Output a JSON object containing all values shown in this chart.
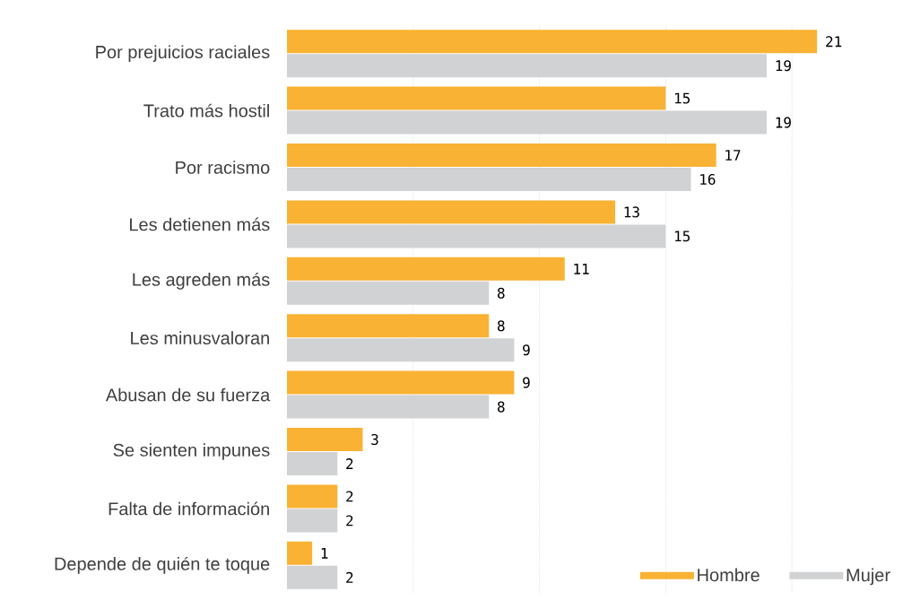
{
  "chart_data": {
    "type": "bar",
    "orientation": "horizontal",
    "categories": [
      "Por prejuicios raciales",
      "Trato más hostil",
      "Por racismo",
      "Les detienen más",
      "Les agreden más",
      "Les minusvaloran",
      "Abusan de su fuerza",
      "Se sienten impunes",
      "Falta de información",
      "Depende de quién te toque"
    ],
    "series": [
      {
        "name": "Hombre",
        "color": "#f9b233",
        "values": [
          21,
          15,
          17,
          13,
          11,
          8,
          9,
          3,
          2,
          1
        ]
      },
      {
        "name": "Mujer",
        "color": "#d1d2d4",
        "values": [
          19,
          19,
          16,
          15,
          8,
          9,
          8,
          2,
          2,
          2
        ]
      }
    ],
    "xticks": [
      {
        "value": 5,
        "label": null
      },
      {
        "value": 10,
        "label": null
      },
      {
        "value": 15,
        "label": null
      },
      {
        "value": 20,
        "label": null
      }
    ],
    "grid": "x",
    "tick_labels": "y",
    "data_labels": true,
    "legend": "bottom right"
  }
}
